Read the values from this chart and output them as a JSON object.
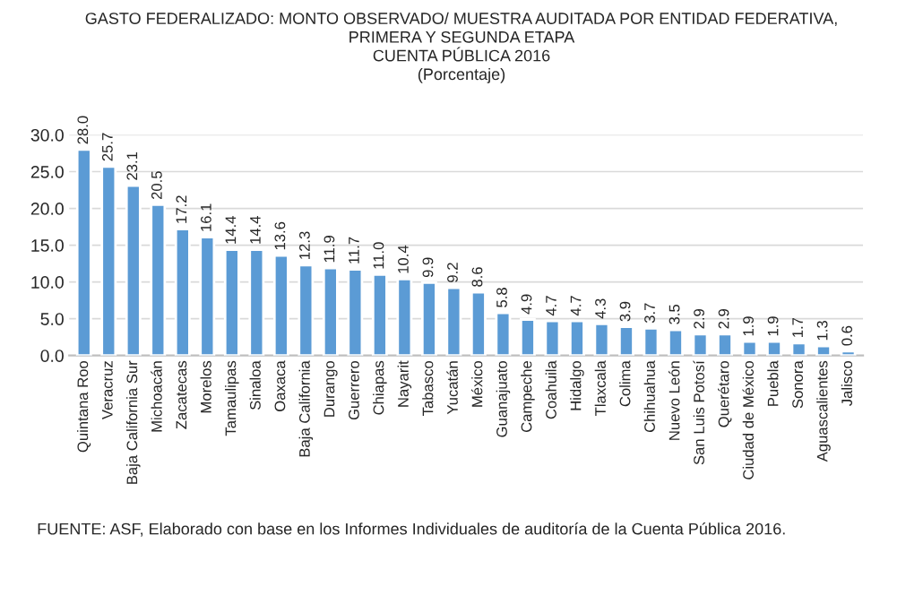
{
  "chart_data": {
    "type": "bar",
    "title": "GASTO FEDERALIZADO: MONTO OBSERVADO/ MUESTRA AUDITADA POR ENTIDAD FEDERATIVA,\nPRIMERA Y SEGUNDA ETAPA\nCUENTA PÚBLICA 2016\n(Porcentaje)",
    "categories": [
      "Quintana Roo",
      "Veracruz",
      "Baja California Sur",
      "Michoacán",
      "Zacatecas",
      "Morelos",
      "Tamaulipas",
      "Sinaloa",
      "Oaxaca",
      "Baja California",
      "Durango",
      "Guerrero",
      "Chiapas",
      "Nayarit",
      "Tabasco",
      "Yucatán",
      "México",
      "Guanajuato",
      "Campeche",
      "Coahuila",
      "Hidalgo",
      "Tlaxcala",
      "Colima",
      "Chihuahua",
      "Nuevo León",
      "San Luis Potosí",
      "Querétaro",
      "Ciudad de México",
      "Puebla",
      "Sonora",
      "Aguascalientes",
      "Jalisco"
    ],
    "values": [
      28.0,
      25.7,
      23.1,
      20.5,
      17.2,
      16.1,
      14.4,
      14.4,
      13.6,
      12.3,
      11.9,
      11.7,
      11.0,
      10.4,
      9.9,
      9.2,
      8.6,
      5.8,
      4.9,
      4.7,
      4.7,
      4.3,
      3.9,
      3.7,
      3.5,
      2.9,
      2.9,
      1.9,
      1.9,
      1.7,
      1.3,
      0.6
    ],
    "value_labels": [
      "28.0",
      "25.7",
      "23.1",
      "20.5",
      "17.2",
      "16.1",
      "14.4",
      "14.4",
      "13.6",
      "12.3",
      "11.9",
      "11.7",
      "11.0",
      "10.4",
      "9.9",
      "9.2",
      "8.6",
      "5.8",
      "4.9",
      "4.7",
      "4.7",
      "4.3",
      "3.9",
      "3.7",
      "3.5",
      "2.9",
      "2.9",
      "1.9",
      "1.9",
      "1.7",
      "1.3",
      "0.6"
    ],
    "color": "#5b9bd5",
    "ylim": [
      0,
      30
    ],
    "yticks": [
      {
        "value": 0,
        "label": "0.0"
      },
      {
        "value": 5,
        "label": "5.0"
      },
      {
        "value": 10,
        "label": "10.0"
      },
      {
        "value": 15,
        "label": "15.0"
      },
      {
        "value": 20,
        "label": "20.0"
      },
      {
        "value": 25,
        "label": "25.0"
      },
      {
        "value": 30,
        "label": "30.0"
      }
    ],
    "grid": "y",
    "annotations": [
      "FUENTE: ASF, Elaborado con base en los Informes Individuales de auditoría de la Cuenta Pública 2016."
    ]
  }
}
